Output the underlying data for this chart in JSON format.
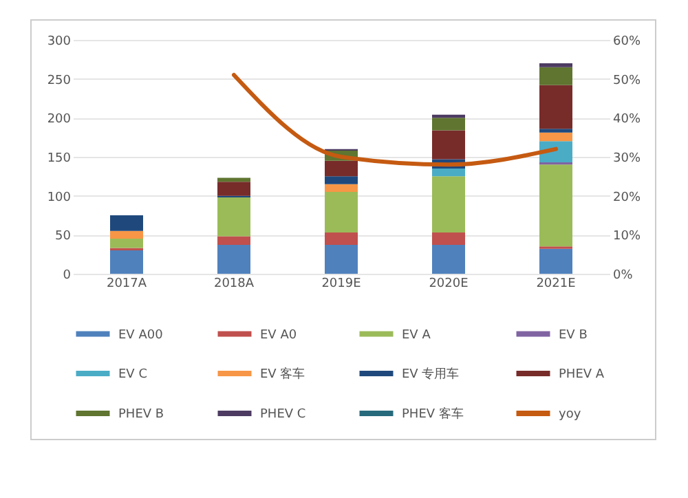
{
  "chart_data": {
    "type": "bar",
    "stacked": true,
    "categories": [
      "2017A",
      "2018A",
      "2019E",
      "2020E",
      "2021E"
    ],
    "series": [
      {
        "name": "EV A00",
        "color": "#4f81bd",
        "values": [
          30,
          37,
          37,
          37,
          32
        ]
      },
      {
        "name": "EV A0",
        "color": "#c0504d",
        "values": [
          3,
          11,
          16,
          16,
          3
        ]
      },
      {
        "name": "EV A",
        "color": "#9bbb59",
        "values": [
          12,
          50,
          52,
          72,
          105
        ]
      },
      {
        "name": "EV B",
        "color": "#8064a2",
        "values": [
          0,
          0,
          0,
          0,
          3
        ]
      },
      {
        "name": "EV C",
        "color": "#4bacc6",
        "values": [
          0,
          0,
          0,
          10,
          27
        ]
      },
      {
        "name": "EV 客车",
        "color": "#f79646",
        "values": [
          10,
          0,
          10,
          0,
          11
        ]
      },
      {
        "name": "EV 专用车",
        "color": "#1f497d",
        "values": [
          20,
          2,
          10,
          12,
          5
        ]
      },
      {
        "name": "PHEV A",
        "color": "#772c2a",
        "values": [
          0,
          18,
          20,
          37,
          56
        ]
      },
      {
        "name": "PHEV B",
        "color": "#5f7530",
        "values": [
          0,
          5,
          13,
          16,
          23
        ]
      },
      {
        "name": "PHEV C",
        "color": "#4d3b62",
        "values": [
          0,
          0,
          2,
          4,
          5
        ]
      },
      {
        "name": "PHEV 客车",
        "color": "#276a7c",
        "values": [
          0,
          0,
          0,
          0,
          0
        ]
      },
      {
        "name": "yoy",
        "color": "#c55a11",
        "type": "line",
        "axis": "y2",
        "values": [
          null,
          51,
          30,
          28,
          32
        ]
      }
    ],
    "ylim": [
      0,
      300
    ],
    "yticks": [
      0,
      50,
      100,
      150,
      200,
      250,
      300
    ],
    "y2lim": [
      0,
      60
    ],
    "y2ticks": [
      {
        "value": 0,
        "label": "0%"
      },
      {
        "value": 10,
        "label": "10%"
      },
      {
        "value": 20,
        "label": "20%"
      },
      {
        "value": 30,
        "label": "30%"
      },
      {
        "value": 40,
        "label": "40%"
      },
      {
        "value": 50,
        "label": "50%"
      },
      {
        "value": 60,
        "label": "60%"
      }
    ],
    "grid": "y",
    "legend": "bottom"
  }
}
